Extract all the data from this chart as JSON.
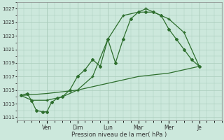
{
  "xlabel": "Pression niveau de la mer( hPa )",
  "bg_color": "#cce8dc",
  "line_color": "#2d6e2d",
  "grid_color": "#aaccbb",
  "ylim": [
    1010.5,
    1028
  ],
  "yticks": [
    1011,
    1013,
    1015,
    1017,
    1019,
    1021,
    1023,
    1025,
    1027
  ],
  "day_labels": [
    "Ven",
    "Dim",
    "Lun",
    "Mar",
    "Mer",
    "Je"
  ],
  "day_positions": [
    2,
    4,
    6,
    8,
    10,
    12
  ],
  "xlim": [
    0,
    13.5
  ],
  "series1_x": [
    0.3,
    0.7,
    1.0,
    1.3,
    1.7,
    2.0,
    2.3,
    2.7,
    3.0,
    3.5,
    4.0,
    4.5,
    5.0,
    5.5,
    6.0,
    6.5,
    7.0,
    7.5,
    8.0,
    8.5,
    9.0,
    9.5,
    10.0,
    10.5,
    11.0,
    11.5,
    12.0
  ],
  "series1_y": [
    1014.2,
    1014.5,
    1013.4,
    1012.0,
    1011.8,
    1011.8,
    1013.2,
    1013.8,
    1014.0,
    1015.0,
    1017.0,
    1018.0,
    1019.5,
    1018.5,
    1022.5,
    1019.0,
    1022.5,
    1025.5,
    1026.5,
    1026.5,
    1026.5,
    1026.0,
    1024.0,
    1022.5,
    1021.0,
    1019.5,
    1018.5
  ],
  "series2_x": [
    0.3,
    1.0,
    2.0,
    3.0,
    4.0,
    5.0,
    6.0,
    7.0,
    8.0,
    8.5,
    9.0,
    10.0,
    11.0,
    12.0
  ],
  "series2_y": [
    1014.2,
    1013.5,
    1013.5,
    1014.0,
    1015.0,
    1017.0,
    1022.5,
    1026.0,
    1026.5,
    1027.0,
    1026.5,
    1025.5,
    1023.5,
    1018.5
  ],
  "series3_x": [
    0.3,
    2.0,
    4.0,
    6.0,
    8.0,
    10.0,
    12.0
  ],
  "series3_y": [
    1014.2,
    1014.5,
    1015.0,
    1016.0,
    1017.0,
    1017.5,
    1018.5
  ]
}
